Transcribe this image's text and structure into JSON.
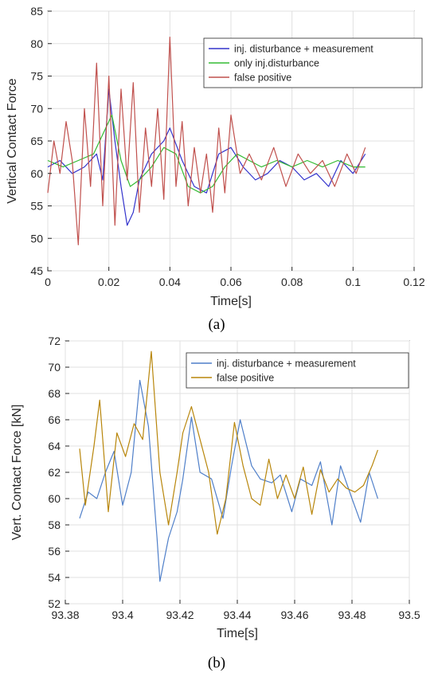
{
  "chart_data": [
    {
      "type": "line",
      "panel_label": "(a)",
      "xlabel": "Time[s]",
      "ylabel": "Vertical Contact Force",
      "xlim": [
        0,
        0.12
      ],
      "ylim": [
        45,
        85
      ],
      "xticks": [
        0,
        0.02,
        0.04,
        0.06,
        0.08,
        0.1,
        0.12
      ],
      "xtick_labels": [
        "0",
        "0.02",
        "0.04",
        "0.06",
        "0.08",
        "0.1",
        "0.12"
      ],
      "yticks": [
        45,
        50,
        55,
        60,
        65,
        70,
        75,
        80,
        85
      ],
      "ytick_labels": [
        "45",
        "50",
        "55",
        "60",
        "65",
        "70",
        "75",
        "80",
        "85"
      ],
      "grid": true,
      "legend_position": "top-right",
      "series": [
        {
          "name": "inj. disturbance + measurement",
          "color": "#3333cc",
          "x": [
            0,
            0.004,
            0.008,
            0.012,
            0.016,
            0.018,
            0.02,
            0.022,
            0.024,
            0.026,
            0.028,
            0.03,
            0.034,
            0.038,
            0.04,
            0.044,
            0.048,
            0.052,
            0.056,
            0.06,
            0.064,
            0.068,
            0.072,
            0.076,
            0.08,
            0.084,
            0.088,
            0.092,
            0.096,
            0.1,
            0.104
          ],
          "y": [
            61,
            62,
            60,
            61,
            63,
            59,
            73,
            65,
            58,
            52,
            54,
            59,
            63,
            65,
            67,
            62,
            58,
            57,
            63,
            64,
            61,
            59,
            60,
            62,
            61,
            59,
            60,
            58,
            62,
            60,
            63
          ]
        },
        {
          "name": "only inj.disturbance",
          "color": "#33bb33",
          "x": [
            0,
            0.005,
            0.01,
            0.015,
            0.018,
            0.021,
            0.024,
            0.027,
            0.03,
            0.034,
            0.038,
            0.042,
            0.046,
            0.05,
            0.054,
            0.058,
            0.062,
            0.066,
            0.07,
            0.075,
            0.08,
            0.085,
            0.09,
            0.095,
            0.1,
            0.104
          ],
          "y": [
            62,
            61,
            62,
            63,
            66,
            69,
            62,
            58,
            59,
            61,
            64,
            63,
            58,
            57,
            58,
            61,
            63,
            62,
            61,
            62,
            61,
            62,
            61,
            62,
            61,
            61
          ]
        },
        {
          "name": "false positive",
          "color": "#c0504d",
          "x": [
            0,
            0.002,
            0.004,
            0.006,
            0.008,
            0.01,
            0.012,
            0.014,
            0.016,
            0.018,
            0.02,
            0.022,
            0.024,
            0.026,
            0.028,
            0.03,
            0.032,
            0.034,
            0.036,
            0.038,
            0.04,
            0.042,
            0.044,
            0.046,
            0.048,
            0.05,
            0.052,
            0.054,
            0.056,
            0.058,
            0.06,
            0.063,
            0.066,
            0.07,
            0.074,
            0.078,
            0.082,
            0.086,
            0.09,
            0.094,
            0.098,
            0.101,
            0.104
          ],
          "y": [
            57,
            65,
            60,
            68,
            62,
            49,
            70,
            58,
            77,
            55,
            75,
            52,
            73,
            59,
            74,
            54,
            67,
            58,
            70,
            56,
            81,
            58,
            68,
            55,
            64,
            57,
            63,
            54,
            67,
            57,
            69,
            60,
            63,
            59,
            64,
            58,
            63,
            60,
            62,
            58,
            63,
            60,
            64
          ]
        }
      ]
    },
    {
      "type": "line",
      "panel_label": "(b)",
      "xlabel": "Time[s]",
      "ylabel": "Vert. Contact Force [kN]",
      "xlim": [
        93.38,
        93.5
      ],
      "ylim": [
        52,
        72
      ],
      "xticks": [
        93.38,
        93.4,
        93.42,
        93.44,
        93.46,
        93.48,
        93.5
      ],
      "xtick_labels": [
        "93.38",
        "93.4",
        "93.42",
        "93.44",
        "93.46",
        "93.48",
        "93.5"
      ],
      "yticks": [
        52,
        54,
        56,
        58,
        60,
        62,
        64,
        66,
        68,
        70,
        72
      ],
      "ytick_labels": [
        "52",
        "54",
        "56",
        "58",
        "60",
        "62",
        "64",
        "66",
        "68",
        "70",
        "72"
      ],
      "grid": true,
      "legend_position": "top-right",
      "series": [
        {
          "name": "inj. disturbance + measurement",
          "color": "#4f7fc9",
          "x": [
            93.385,
            93.388,
            93.391,
            93.394,
            93.397,
            93.4,
            93.403,
            93.406,
            93.409,
            93.412,
            93.413,
            93.416,
            93.419,
            93.421,
            93.424,
            93.427,
            93.431,
            93.435,
            93.438,
            93.441,
            93.445,
            93.448,
            93.452,
            93.455,
            93.459,
            93.462,
            93.466,
            93.469,
            93.473,
            93.476,
            93.48,
            93.483,
            93.486,
            93.489
          ],
          "y": [
            58.5,
            60.5,
            60,
            62,
            63.6,
            59.5,
            62,
            69,
            65.5,
            57,
            53.7,
            57,
            59,
            61.5,
            66.2,
            62,
            61.5,
            58.5,
            62.5,
            66,
            62.5,
            61.5,
            61.2,
            61.8,
            59,
            61.5,
            61,
            62.8,
            58,
            62.5,
            60,
            58.2,
            62,
            60
          ]
        },
        {
          "name": "false positive",
          "color": "#b8860b",
          "x": [
            93.385,
            93.387,
            93.39,
            93.392,
            93.395,
            93.398,
            93.401,
            93.404,
            93.407,
            93.41,
            93.413,
            93.416,
            93.419,
            93.421,
            93.424,
            93.427,
            93.43,
            93.433,
            93.436,
            93.439,
            93.442,
            93.445,
            93.448,
            93.451,
            93.454,
            93.457,
            93.46,
            93.463,
            93.466,
            93.469,
            93.472,
            93.475,
            93.478,
            93.481,
            93.484,
            93.487,
            93.489
          ],
          "y": [
            63.8,
            59.5,
            64,
            67.5,
            59,
            65,
            63.2,
            65.7,
            64.5,
            71.2,
            62,
            58,
            62,
            65,
            67,
            64.5,
            62,
            57.3,
            60,
            65.8,
            62.5,
            60,
            59.5,
            63,
            60,
            61.8,
            60,
            62.4,
            58.8,
            62.2,
            60.5,
            61.5,
            60.8,
            60.5,
            61,
            62.5,
            63.7
          ]
        }
      ]
    }
  ]
}
